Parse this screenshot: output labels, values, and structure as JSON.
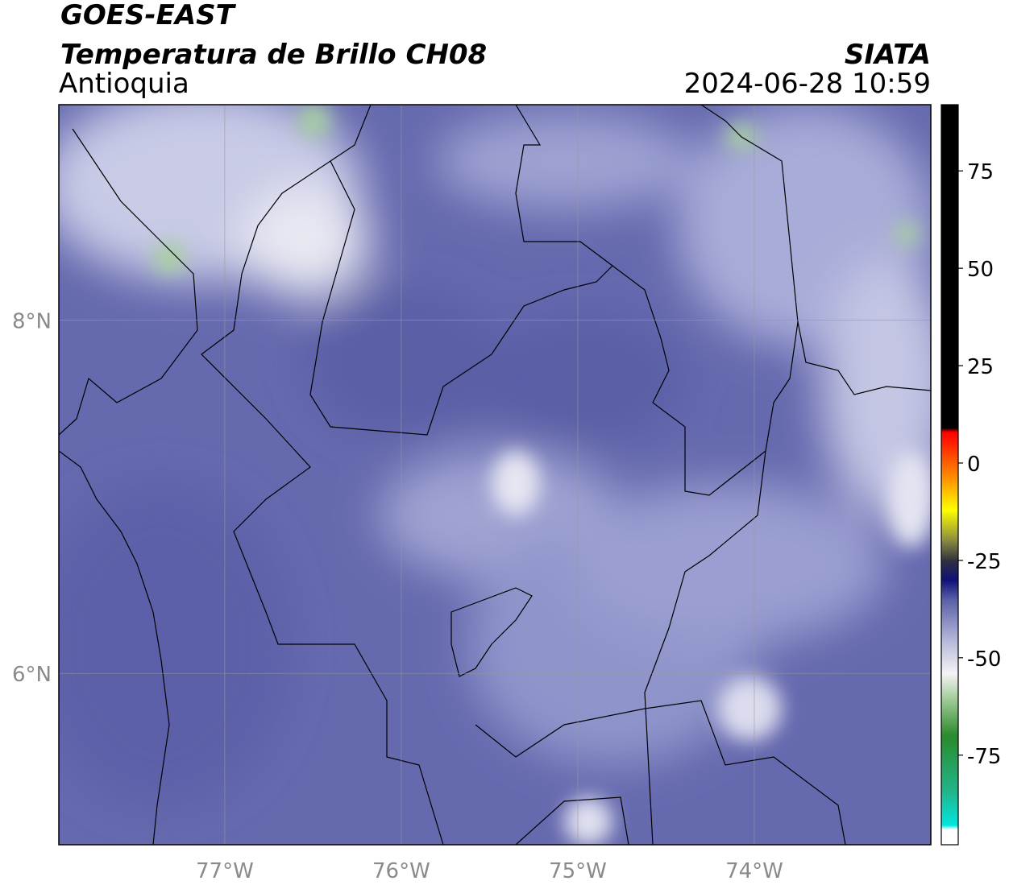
{
  "header": {
    "title": "GOES-EAST",
    "subtitle": "Temperatura de Brillo CH08",
    "region": "Antioquia",
    "source": "SIATA",
    "datetime": "2024-06-28 10:59"
  },
  "map": {
    "xlim": [
      -77.94,
      -73.0
    ],
    "ylim": [
      5.03,
      9.22
    ],
    "xticks": [
      {
        "value": -77,
        "label": "77°W"
      },
      {
        "value": -76,
        "label": "76°W"
      },
      {
        "value": -75,
        "label": "75°W"
      },
      {
        "value": -74,
        "label": "74°W"
      }
    ],
    "yticks": [
      {
        "value": 6,
        "label": "6°N"
      },
      {
        "value": 8,
        "label": "8°N"
      }
    ],
    "grid": true
  },
  "colorbar": {
    "lim": [
      -98,
      92
    ],
    "ticks": [
      75,
      50,
      25,
      0,
      -25,
      -50,
      -75
    ],
    "stops": [
      {
        "value": -98,
        "color": "#ffffff"
      },
      {
        "value": -94,
        "color": "#ffffff"
      },
      {
        "value": -93,
        "color": "#00e8e0"
      },
      {
        "value": -85,
        "color": "#20b890"
      },
      {
        "value": -70,
        "color": "#2a8a2a"
      },
      {
        "value": -60,
        "color": "#a8d0a0"
      },
      {
        "value": -54,
        "color": "#f4f4f4"
      },
      {
        "value": -45,
        "color": "#b0b4d8"
      },
      {
        "value": -35,
        "color": "#5a5fa8"
      },
      {
        "value": -30,
        "color": "#101078"
      },
      {
        "value": -25,
        "color": "#303040"
      },
      {
        "value": -20,
        "color": "#888840"
      },
      {
        "value": -12,
        "color": "#ffff00"
      },
      {
        "value": -5,
        "color": "#ffa000"
      },
      {
        "value": 5,
        "color": "#ff2000"
      },
      {
        "value": 8,
        "color": "#ff0000"
      },
      {
        "value": 9,
        "color": "#000000"
      },
      {
        "value": 92,
        "color": "#000000"
      }
    ]
  }
}
